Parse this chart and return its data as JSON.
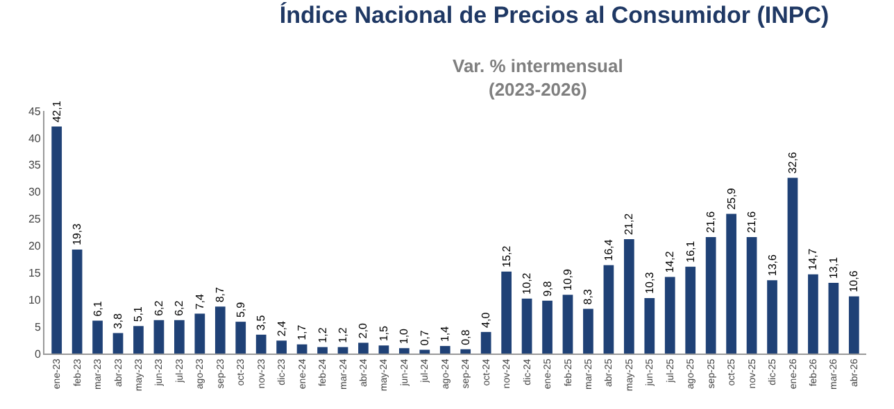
{
  "chart_data": {
    "type": "bar",
    "title": "Índice Nacional de Precios al Consumidor (INPC)",
    "subtitle": "Var. % intermensual\n(2023-2026)",
    "categories": [
      "ene-23",
      "feb-23",
      "mar-23",
      "abr-23",
      "may-23",
      "jun-23",
      "jul-23",
      "ago-23",
      "sep-23",
      "oct-23",
      "nov-23",
      "dic-23",
      "ene-24",
      "feb-24",
      "mar-24",
      "abr-24",
      "may-24",
      "jun-24",
      "jul-24",
      "ago-24",
      "sep-24",
      "oct-24",
      "nov-24",
      "dic-24",
      "ene-25",
      "feb-25",
      "mar-25",
      "abr-25",
      "may-25",
      "jun-25",
      "jul-25",
      "ago-25",
      "sep-25",
      "oct-25",
      "nov-25",
      "dic-25",
      "ene-26",
      "feb-26",
      "mar-26",
      "abr-26"
    ],
    "values": [
      42.1,
      19.3,
      6.1,
      3.8,
      5.1,
      6.2,
      6.2,
      7.4,
      8.7,
      5.9,
      3.5,
      2.4,
      1.7,
      1.2,
      1.2,
      2.0,
      1.5,
      1.0,
      0.7,
      1.4,
      0.8,
      4.0,
      15.2,
      10.2,
      9.8,
      10.9,
      8.3,
      16.4,
      21.2,
      10.3,
      14.2,
      16.1,
      21.6,
      25.9,
      21.6,
      13.6,
      32.6,
      14.7,
      13.1,
      10.6
    ],
    "value_labels": [
      "42,1",
      "19,3",
      "6,1",
      "3,8",
      "5,1",
      "6,2",
      "6,2",
      "7,4",
      "8,7",
      "5,9",
      "3,5",
      "2,4",
      "1,7",
      "1,2",
      "1,2",
      "2,0",
      "1,5",
      "1,0",
      "0,7",
      "1,4",
      "0,8",
      "4,0",
      "15,2",
      "10,2",
      "9,8",
      "10,9",
      "8,3",
      "16,4",
      "21,2",
      "10,3",
      "14,2",
      "16,1",
      "21,6",
      "25,9",
      "21,6",
      "13,6",
      "32,6",
      "14,7",
      "13,1",
      "10,6"
    ],
    "color": "#1f4176",
    "ylim": [
      0,
      45
    ],
    "yticks": [
      0,
      5,
      10,
      15,
      20,
      25,
      30,
      35,
      40,
      45
    ],
    "grid": false,
    "legend": false
  }
}
